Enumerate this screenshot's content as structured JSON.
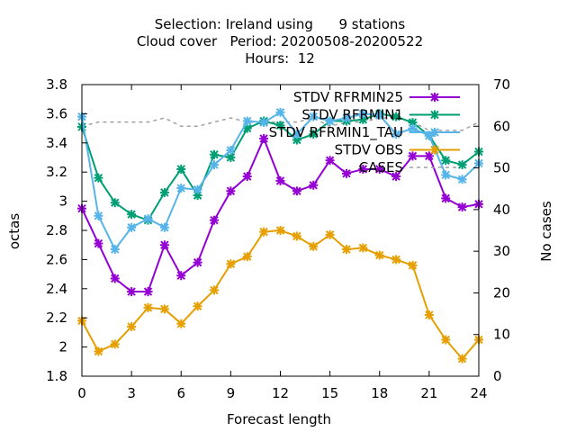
{
  "chart_data": {
    "type": "line",
    "title_lines": [
      "Selection: Ireland using      9 stations",
      "Cloud cover   Period: 20200508-20200522",
      "Hours:  12"
    ],
    "xlabel": "Forecast length",
    "ylabel": "octas",
    "y2label": "No cases",
    "xlim": [
      0,
      24
    ],
    "ylim": [
      1.8,
      3.8
    ],
    "y2lim": [
      0,
      70
    ],
    "xticks": [
      "0",
      "3",
      "6",
      "9",
      "12",
      "15",
      "18",
      "21",
      "24"
    ],
    "yticks": [
      "1.8",
      "2",
      "2.2",
      "2.4",
      "2.6",
      "2.8",
      "3",
      "3.2",
      "3.4",
      "3.6",
      "3.8"
    ],
    "y2ticks": [
      "0",
      "10",
      "20",
      "30",
      "40",
      "50",
      "60",
      "70"
    ],
    "legend_placement": "top-right",
    "x": [
      0,
      1,
      2,
      3,
      4,
      5,
      6,
      7,
      8,
      9,
      10,
      11,
      12,
      13,
      14,
      15,
      16,
      17,
      18,
      19,
      20,
      21,
      22,
      23,
      24
    ],
    "series": [
      {
        "name": "STDV RFRMIN25",
        "color": "#9400d3",
        "axis": "y",
        "style": "line-points",
        "values": [
          2.95,
          2.71,
          2.47,
          2.38,
          2.38,
          2.7,
          2.49,
          2.58,
          2.87,
          3.07,
          3.17,
          3.43,
          3.14,
          3.07,
          3.11,
          3.28,
          3.19,
          3.22,
          3.22,
          3.17,
          3.31,
          3.31,
          3.02,
          2.96,
          2.98
        ]
      },
      {
        "name": "STDV RFRMIN1",
        "color": "#009e73",
        "axis": "y",
        "style": "line-points",
        "values": [
          3.51,
          3.16,
          2.99,
          2.91,
          2.87,
          3.06,
          3.22,
          3.04,
          3.32,
          3.3,
          3.5,
          3.55,
          3.52,
          3.42,
          3.46,
          3.55,
          3.55,
          3.56,
          3.6,
          3.58,
          3.54,
          3.45,
          3.28,
          3.25,
          3.34
        ]
      },
      {
        "name": "STDV RFRMIN1_TAU",
        "color": "#56b4e9",
        "axis": "y",
        "style": "line-points",
        "values": [
          3.58,
          2.9,
          2.67,
          2.82,
          2.88,
          2.82,
          3.09,
          3.08,
          3.25,
          3.35,
          3.55,
          3.54,
          3.61,
          3.46,
          3.58,
          3.55,
          3.57,
          3.6,
          3.59,
          3.46,
          3.5,
          3.45,
          3.18,
          3.15,
          3.26
        ]
      },
      {
        "name": "STDV OBS",
        "color": "#e69f00",
        "axis": "y",
        "style": "line-points",
        "values": [
          2.18,
          1.97,
          2.02,
          2.14,
          2.27,
          2.26,
          2.16,
          2.28,
          2.39,
          2.57,
          2.62,
          2.79,
          2.8,
          2.76,
          2.69,
          2.77,
          2.67,
          2.68,
          2.63,
          2.6,
          2.56,
          2.22,
          2.05,
          1.92,
          2.05
        ]
      },
      {
        "name": "CASES",
        "color": "#a0a0a0",
        "axis": "y2",
        "style": "dashed",
        "values": [
          60,
          61,
          61,
          61,
          61,
          62,
          60,
          60,
          61,
          62,
          61,
          61,
          61,
          61,
          62,
          60,
          61,
          61,
          62,
          62,
          61,
          59,
          59,
          59,
          61
        ]
      }
    ]
  }
}
